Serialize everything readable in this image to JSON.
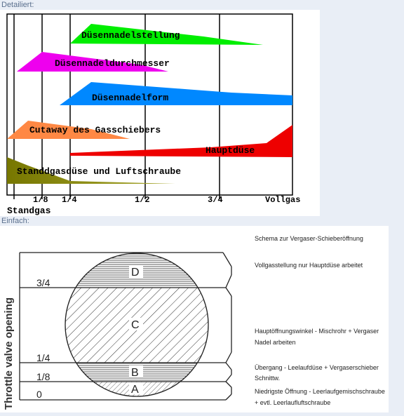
{
  "sections": {
    "detailed_label": "Detailiert:",
    "simple_label": "Einfach:"
  },
  "detailed_chart": {
    "bands": [
      {
        "label": "Düsennadelstellung",
        "color": "#00ee00"
      },
      {
        "label": "Düsennadeldurchmesser",
        "color": "#ee00ee"
      },
      {
        "label": "Düsennadelform",
        "color": "#0088ff"
      },
      {
        "label": "Cutaway des Gasschiebers",
        "color": "#ff8844"
      },
      {
        "label": "Hauptdüse",
        "color": "#ee0000"
      },
      {
        "label": "Standdgasdüse und Luftschraube",
        "color": "#888800"
      }
    ],
    "tick_labels": [
      "1/8",
      "1/4",
      "1/2",
      "3/4",
      "Vollgas"
    ],
    "idle_label": "Standgas"
  },
  "simple_diagram": {
    "axis_label": "Throttle valve opening",
    "levels": [
      "3/4",
      "1/4",
      "1/8",
      "0"
    ],
    "zones": [
      "D",
      "C",
      "B",
      "A"
    ],
    "title": "Schema zur Vergaser-Schieberöffnung",
    "notes": [
      [
        "Vollgasstellung nur Hauptdüse arbeitet"
      ],
      [
        "Hauptöffnungswinkel - Mischrohr + Vergaser",
        "Nadel arbeiten"
      ],
      [
        "Übergang - Leelaufdüse + Vergaserschieber",
        "Schnittw."
      ],
      [
        "Niedrigste Öffnung - Leerlaufgemischschraube",
        "+ evtl. Leerlaufluftschraube"
      ]
    ]
  }
}
